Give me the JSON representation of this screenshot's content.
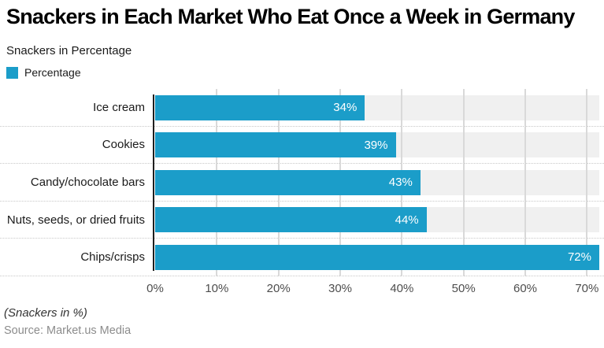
{
  "header": {
    "title": "Snackers in Each Market Who Eat Once a Week in Germany",
    "subtitle": "Snackers in Percentage"
  },
  "legend": {
    "label": "Percentage"
  },
  "theme": {
    "accent": "#1b9dc9",
    "track": "#f0f0f0",
    "gridline": "#d9d9d9",
    "axis_line": "#1f1f1f"
  },
  "chart_data": {
    "type": "bar",
    "orientation": "horizontal",
    "title": "Snackers in Each Market Who Eat Once a Week in Germany",
    "subtitle": "Snackers in Percentage",
    "series_name": "Percentage",
    "categories": [
      "Ice cream",
      "Cookies",
      "Candy/chocolate bars",
      "Nuts, seeds, or dried fruits",
      "Chips/crisps"
    ],
    "values": [
      34,
      39,
      43,
      44,
      72
    ],
    "value_labels": [
      "34%",
      "39%",
      "43%",
      "44%",
      "72%"
    ],
    "x_tick_labels": [
      "0%",
      "10%",
      "20%",
      "30%",
      "40%",
      "50%",
      "60%",
      "70%"
    ],
    "x_tick_values": [
      0,
      10,
      20,
      30,
      40,
      50,
      60,
      70
    ],
    "xlim": [
      0,
      72
    ],
    "xlabel": "",
    "ylabel": "",
    "grid": true,
    "legend_position": "top-left",
    "bar_color": "#1b9dc9"
  },
  "footer": {
    "note": "(Snackers in %)",
    "source": "Source: Market.us Media"
  }
}
